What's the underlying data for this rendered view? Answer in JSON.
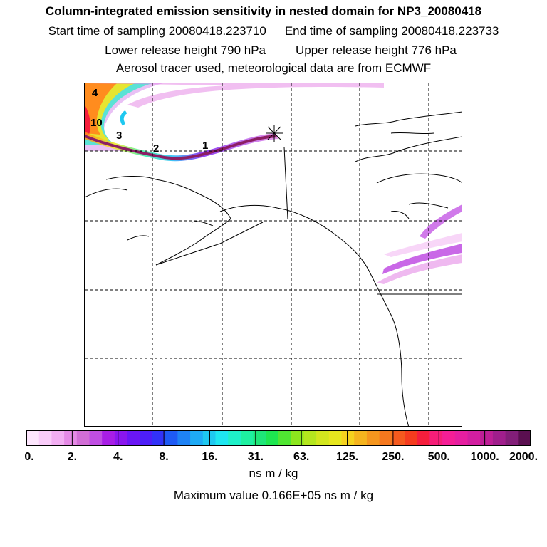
{
  "title": "Column-integrated emission sensitivity in nested domain for NP3_20080418",
  "sampling": {
    "start": "Start time of sampling 20080418.223710",
    "end": "End time of sampling 20080418.223733"
  },
  "release": {
    "lower": "Lower release height  790 hPa",
    "upper": "Upper release height  776 hPa"
  },
  "tracer_info": "Aerosol tracer used, meteorological data are from ECMWF",
  "contour_labels": [
    "4",
    "10",
    "3",
    "2",
    "1"
  ],
  "colorbar": {
    "colors": [
      "#fde6fd",
      "#f9ccf9",
      "#f2aef2",
      "#e58ae6",
      "#d26ed6",
      "#c04ee3",
      "#a81ee6",
      "#8a16ee",
      "#6a16f5",
      "#4d1ef8",
      "#3232f8",
      "#1e5af5",
      "#1e82f5",
      "#1eaaf5",
      "#1ec8f0",
      "#1ee6f0",
      "#1ef0c8",
      "#1ef0a0",
      "#1ee678",
      "#1ee650",
      "#50e632",
      "#8ce61e",
      "#b4e61e",
      "#d2e61e",
      "#e6e61e",
      "#f5d21e",
      "#f5b41e",
      "#f5961e",
      "#f5781e",
      "#f55a1e",
      "#f53c1e",
      "#f51e3c",
      "#f51e78",
      "#f51e96",
      "#e61ea0",
      "#d21ea0",
      "#be1e96",
      "#a01e8c",
      "#821e78",
      "#5a0f50"
    ],
    "labels": [
      "0.",
      "2.",
      "4.",
      "8.",
      "16.",
      "31.",
      "63.",
      "125.",
      "250.",
      "500.",
      "1000.",
      "2000."
    ],
    "unit": "ns m / kg"
  },
  "maximum_value": "Maximum value  0.166E+05 ns m / kg"
}
